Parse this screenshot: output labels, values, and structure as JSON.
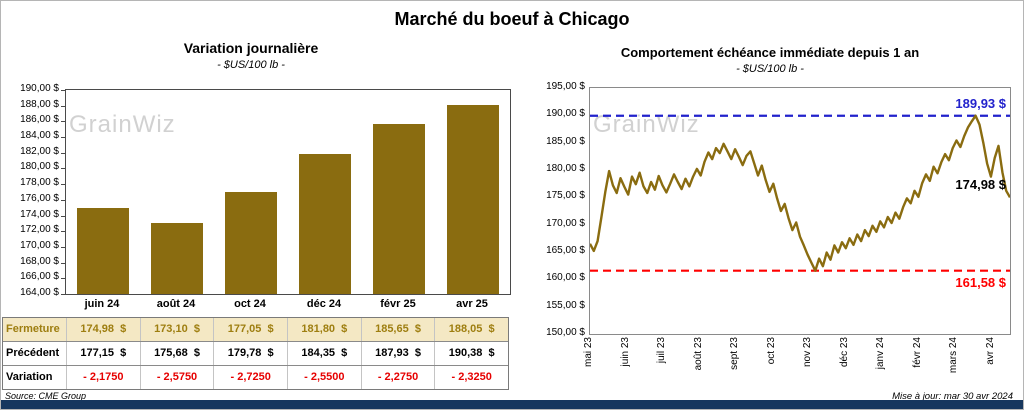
{
  "page": {
    "title": "Marché du boeuf à Chicago",
    "watermark": "GrainWiz",
    "source_note": "Source: CME Group",
    "update_note": "Mise à jour: mar 30 avr 2024"
  },
  "colors": {
    "gold": "#8A6C10",
    "fermeture_bg": "#F4E8C4",
    "fermeture_text": "#9E7E10",
    "variation_red": "#E60000",
    "max_blue": "#2222CC",
    "min_red": "#FF0000",
    "navy": "#17375E"
  },
  "chart_data": [
    {
      "type": "bar",
      "title": "Variation  journalière",
      "subtitle": "- $US/100 lb -",
      "categories": [
        "juin 24",
        "août 24",
        "oct 24",
        "déc 24",
        "févr 25",
        "avr 25"
      ],
      "values": [
        174.98,
        173.1,
        177.05,
        181.8,
        185.65,
        188.05
      ],
      "ylim": [
        164,
        190
      ],
      "ytick_step": 2,
      "yticks": [
        "190,00 $",
        "188,00 $",
        "186,00 $",
        "184,00 $",
        "182,00 $",
        "180,00 $",
        "178,00 $",
        "176,00 $",
        "174,00 $",
        "172,00 $",
        "170,00 $",
        "168,00 $",
        "166,00 $",
        "164,00 $"
      ],
      "bar_color": "#8A6C10",
      "grid": false,
      "legend": false
    },
    {
      "type": "line",
      "title": "Comportement  échéance immédiate depuis 1 an",
      "subtitle": "- $US/100 lb -",
      "x_ticks": [
        "mai 23",
        "juin 23",
        "juil 23",
        "août 23",
        "sept 23",
        "oct 23",
        "nov 23",
        "déc 23",
        "janv 24",
        "févr 24",
        "mars 24",
        "avr 24"
      ],
      "ylim": [
        150,
        195
      ],
      "ytick_step": 5,
      "yticks": [
        "195,00 $",
        "190,00 $",
        "185,00 $",
        "180,00 $",
        "175,00 $",
        "170,00 $",
        "165,00 $",
        "160,00 $",
        "155,00 $",
        "150,00 $"
      ],
      "line_color": "#8A6C10",
      "grid": false,
      "legend": false,
      "series": [
        {
          "name": "échéance immédiate",
          "values": [
            166.5,
            165.2,
            167.0,
            171.5,
            176.0,
            179.8,
            177.2,
            175.8,
            178.5,
            176.9,
            175.5,
            178.8,
            177.4,
            179.5,
            177.0,
            175.8,
            177.8,
            176.4,
            178.9,
            177.2,
            175.9,
            177.5,
            179.2,
            177.8,
            176.5,
            178.4,
            177.0,
            178.8,
            180.2,
            179.0,
            181.5,
            183.2,
            182.0,
            184.0,
            183.1,
            184.8,
            183.4,
            182.0,
            183.8,
            182.4,
            180.9,
            182.6,
            183.4,
            181.2,
            179.0,
            180.8,
            178.2,
            176.0,
            177.5,
            174.8,
            172.5,
            173.8,
            171.2,
            169.0,
            170.4,
            167.8,
            166.2,
            164.5,
            163.0,
            161.58,
            163.8,
            162.4,
            164.9,
            163.6,
            166.2,
            164.9,
            166.8,
            165.7,
            167.5,
            166.3,
            168.2,
            167.0,
            169.0,
            167.9,
            169.8,
            168.7,
            170.6,
            169.5,
            171.4,
            170.3,
            172.2,
            171.1,
            173.2,
            174.8,
            173.9,
            176.2,
            175.1,
            177.6,
            179.2,
            178.0,
            180.6,
            179.4,
            181.4,
            182.9,
            181.8,
            184.0,
            185.4,
            184.2,
            186.2,
            187.8,
            188.9,
            189.93,
            188.3,
            185.0,
            181.2,
            178.8,
            182.2,
            184.4,
            179.6,
            176.2,
            174.98
          ]
        }
      ],
      "annotations": [
        {
          "id": "max",
          "label": "189,93 $",
          "value": 189.93,
          "color": "#2222CC",
          "line": "dashed",
          "placement": "above"
        },
        {
          "id": "last",
          "label": "174,98 $",
          "value": 174.98,
          "color": "#000000",
          "line": "none",
          "placement": "above"
        },
        {
          "id": "min",
          "label": "161,58 $",
          "value": 161.58,
          "color": "#FF0000",
          "line": "dashed",
          "placement": "below"
        }
      ]
    }
  ],
  "table": {
    "rows": [
      {
        "key": "fermeture",
        "label": "Fermeture",
        "values": [
          "174,98  $",
          "173,10  $",
          "177,05  $",
          "181,80  $",
          "185,65  $",
          "188,05  $"
        ]
      },
      {
        "key": "precedent",
        "label": "Précédent",
        "values": [
          "177,15  $",
          "175,68  $",
          "179,78  $",
          "184,35  $",
          "187,93  $",
          "190,38  $"
        ]
      },
      {
        "key": "variation",
        "label": "Variation",
        "values": [
          "- 2,1750",
          "- 2,5750",
          "- 2,7250",
          "- 2,5500",
          "- 2,2750",
          "- 2,3250"
        ]
      }
    ]
  }
}
